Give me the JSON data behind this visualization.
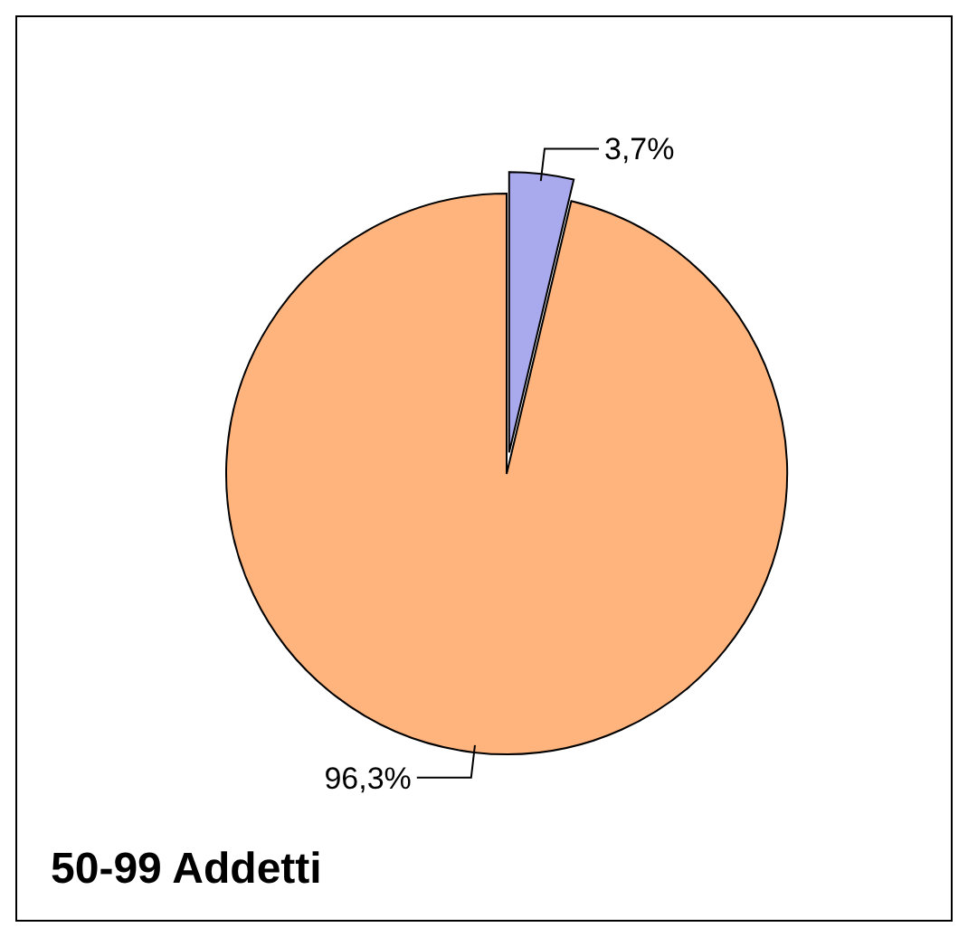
{
  "chart_data": {
    "type": "pie",
    "title": "50-99 Addetti",
    "categories": [
      null,
      null
    ],
    "values": [
      3.7,
      96.3
    ],
    "colors": [
      "#a9a9ee",
      "#ffb47e"
    ],
    "value_labels": [
      "3,7%",
      "96,3%"
    ]
  }
}
